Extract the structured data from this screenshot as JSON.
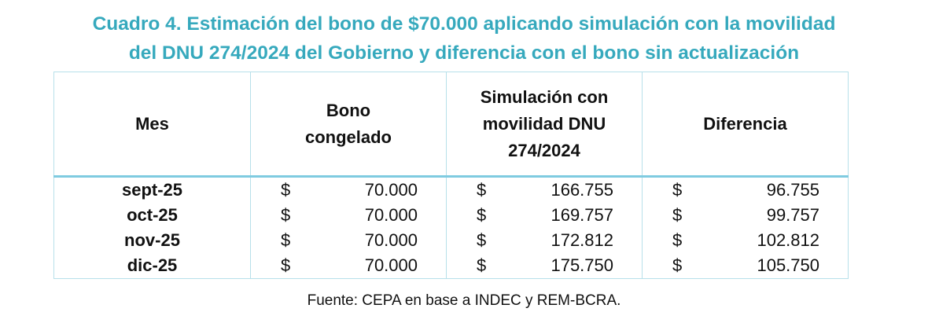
{
  "title_lines": [
    "Cuadro 4. Estimación del bono de $70.000 aplicando simulación con la movilidad",
    "del DNU 274/2024 del Gobierno y diferencia con el bono sin actualización"
  ],
  "table": {
    "headers": [
      "Mes",
      "Bono congelado",
      "Simulación con movilidad DNU 274/2024",
      "Diferencia"
    ],
    "rows": [
      [
        "sept-25",
        "$",
        "70.000",
        "$",
        "166.755",
        "$",
        "96.755"
      ],
      [
        "oct-25",
        "$",
        "70.000",
        "$",
        "169.757",
        "$",
        "99.757"
      ],
      [
        "nov-25",
        "$",
        "70.000",
        "$",
        "172.812",
        "$",
        "102.812"
      ],
      [
        "dic-25",
        "$",
        "70.000",
        "$",
        "175.750",
        "$",
        "105.750"
      ]
    ]
  },
  "source": "Fuente: CEPA en base a INDEC y REM-BCRA."
}
